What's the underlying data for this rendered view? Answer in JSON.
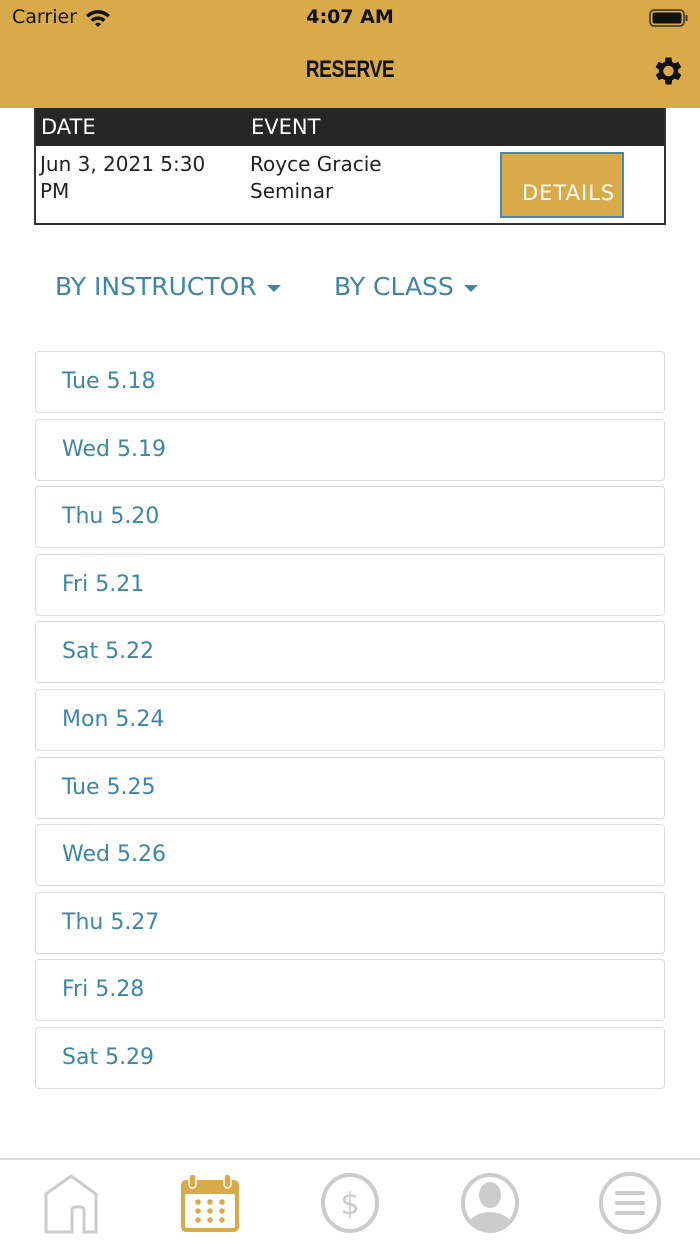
{
  "status_bar": {
    "carrier": "Carrier",
    "time": "4:07 AM"
  },
  "header": {
    "title": "RESERVE"
  },
  "events_table": {
    "headers": [
      "DATE",
      "EVENT"
    ],
    "rows": [
      {
        "date": "Jun 3, 2021 5:30 PM",
        "event": "Royce Gracie Seminar",
        "button": "DETAILS"
      }
    ]
  },
  "filters": {
    "instructor": "BY INSTRUCTOR",
    "class": "BY CLASS"
  },
  "days": [
    "Tue 5.18",
    "Wed 5.19",
    "Thu 5.20",
    "Fri 5.21",
    "Sat 5.22",
    "Mon 5.24",
    "Tue 5.25",
    "Wed 5.26",
    "Thu 5.27",
    "Fri 5.28",
    "Sat 5.29"
  ],
  "tabbar": {
    "active": "calendar",
    "items": [
      "home-icon",
      "calendar-icon",
      "dollar-icon",
      "profile-icon",
      "menu-icon"
    ]
  },
  "colors": {
    "brand": "#D8AA4A",
    "link": "#3E86A3",
    "inactive": "#cccccc"
  }
}
